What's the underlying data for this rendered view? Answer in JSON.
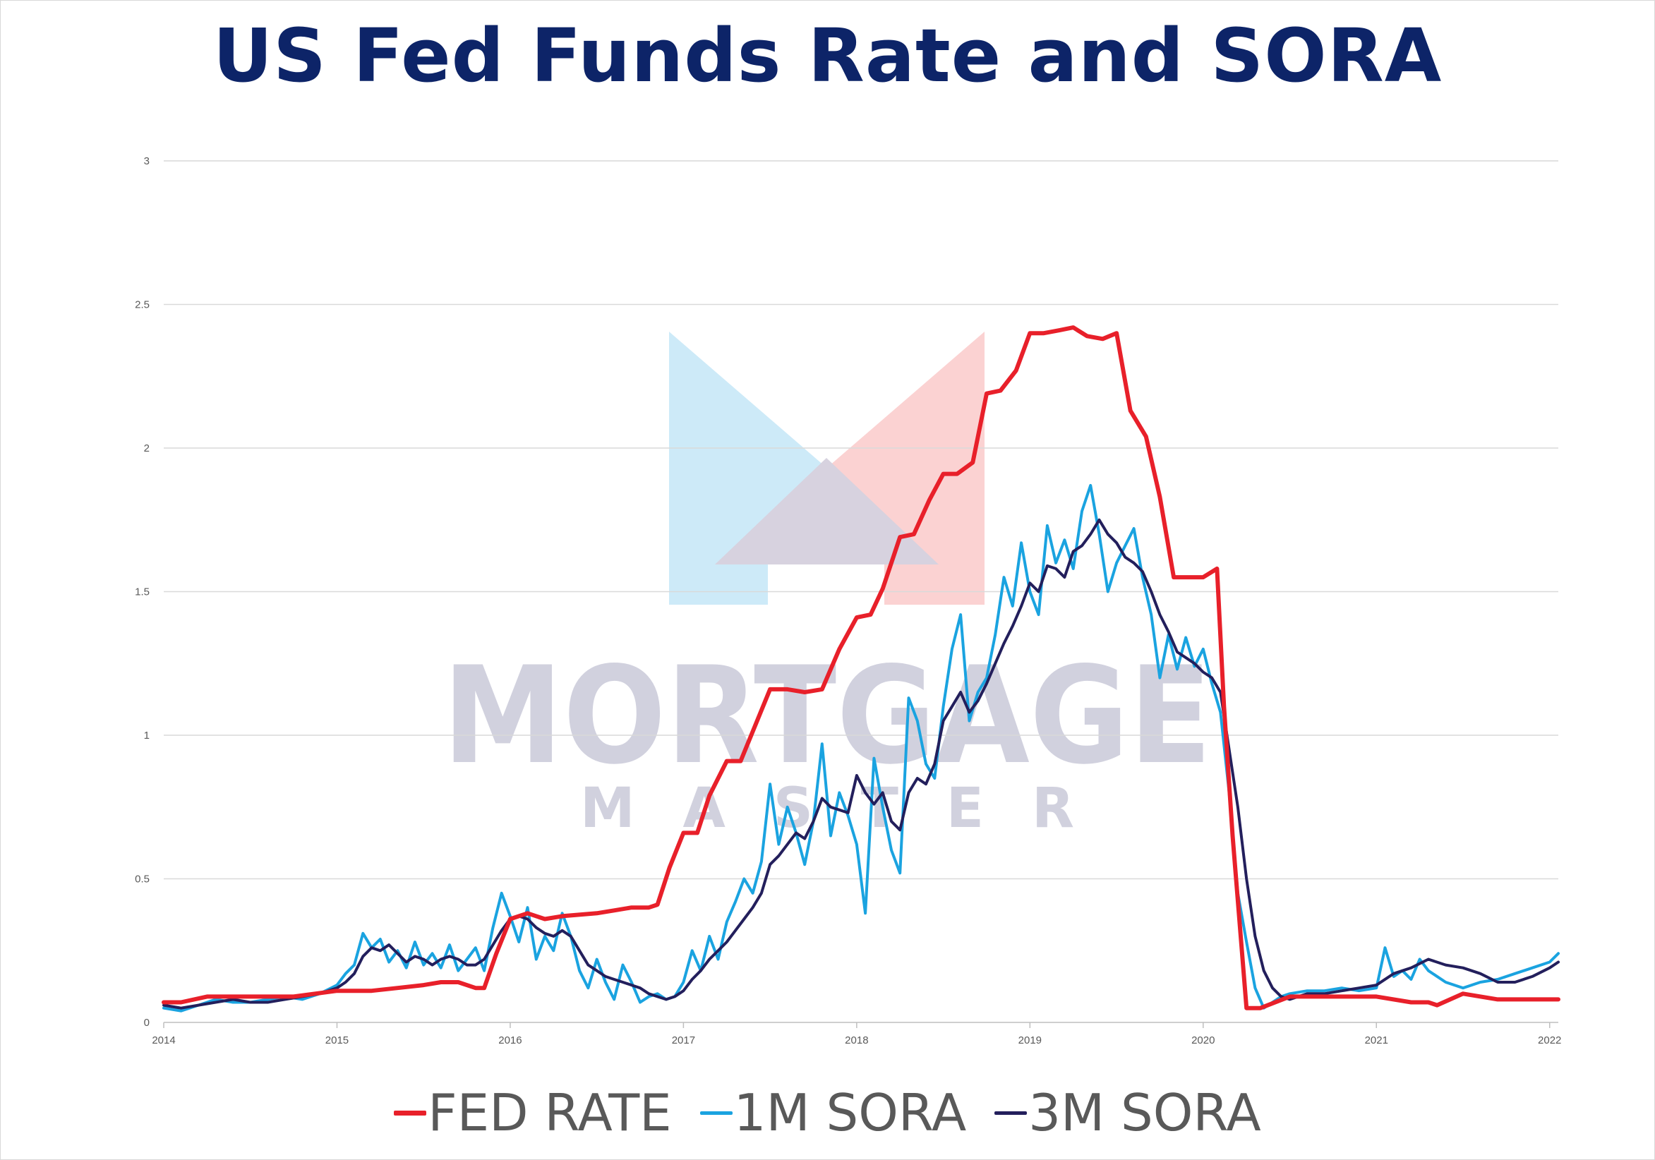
{
  "title": "US Fed Funds Rate and SORA",
  "watermark": {
    "word1": "MORTGAGE",
    "word2": "M A S T E R"
  },
  "legend": [
    {
      "name": "FED RATE",
      "color": "#e8202a"
    },
    {
      "name": "1M SORA",
      "color": "#1aa3e0"
    },
    {
      "name": "3M SORA",
      "color": "#231f5c"
    }
  ],
  "chart_data": {
    "type": "line",
    "title": "US Fed Funds Rate and SORA",
    "xlim": [
      2014.0,
      2022.05
    ],
    "ylim": [
      0,
      3
    ],
    "x_ticks": [
      "2014",
      "2015",
      "2016",
      "2017",
      "2018",
      "2019",
      "2020",
      "2021",
      "2022"
    ],
    "y_ticks": [
      "0",
      "0.5",
      "1",
      "1.5",
      "2",
      "2.5",
      "3"
    ],
    "grid": true,
    "legend_position": "bottom",
    "series": [
      {
        "name": "FED RATE",
        "color": "#e8202a",
        "x": [
          2014.0,
          2014.1,
          2014.25,
          2014.4,
          2014.5,
          2014.75,
          2015.0,
          2015.2,
          2015.35,
          2015.5,
          2015.6,
          2015.7,
          2015.8,
          2015.85,
          2015.92,
          2016.0,
          2016.1,
          2016.2,
          2016.3,
          2016.5,
          2016.6,
          2016.7,
          2016.8,
          2016.85,
          2016.92,
          2017.0,
          2017.08,
          2017.15,
          2017.25,
          2017.33,
          2017.5,
          2017.6,
          2017.7,
          2017.8,
          2017.9,
          2018.0,
          2018.08,
          2018.15,
          2018.25,
          2018.33,
          2018.42,
          2018.5,
          2018.58,
          2018.67,
          2018.75,
          2018.83,
          2018.92,
          2019.0,
          2019.08,
          2019.17,
          2019.25,
          2019.33,
          2019.42,
          2019.5,
          2019.58,
          2019.67,
          2019.75,
          2019.83,
          2019.92,
          2020.0,
          2020.08,
          2020.12,
          2020.17,
          2020.25,
          2020.33,
          2020.5,
          2021.0,
          2021.2,
          2021.3,
          2021.35,
          2021.5,
          2021.7,
          2022.05
        ],
        "y": [
          0.07,
          0.07,
          0.09,
          0.09,
          0.09,
          0.09,
          0.11,
          0.11,
          0.12,
          0.13,
          0.14,
          0.14,
          0.12,
          0.12,
          0.24,
          0.36,
          0.38,
          0.36,
          0.37,
          0.38,
          0.39,
          0.4,
          0.4,
          0.41,
          0.54,
          0.66,
          0.66,
          0.79,
          0.91,
          0.91,
          1.16,
          1.16,
          1.15,
          1.16,
          1.3,
          1.41,
          1.42,
          1.51,
          1.69,
          1.7,
          1.82,
          1.91,
          1.91,
          1.95,
          2.19,
          2.2,
          2.27,
          2.4,
          2.4,
          2.41,
          2.42,
          2.39,
          2.38,
          2.4,
          2.13,
          2.04,
          1.83,
          1.55,
          1.55,
          1.55,
          1.58,
          1.1,
          0.65,
          0.05,
          0.05,
          0.09,
          0.09,
          0.07,
          0.07,
          0.06,
          0.1,
          0.08,
          0.08
        ]
      },
      {
        "name": "1M SORA",
        "color": "#1aa3e0",
        "x": [
          2014.0,
          2014.1,
          2014.2,
          2014.3,
          2014.4,
          2014.5,
          2014.6,
          2014.7,
          2014.8,
          2014.9,
          2015.0,
          2015.05,
          2015.1,
          2015.15,
          2015.2,
          2015.25,
          2015.3,
          2015.35,
          2015.4,
          2015.45,
          2015.5,
          2015.55,
          2015.6,
          2015.65,
          2015.7,
          2015.75,
          2015.8,
          2015.85,
          2015.9,
          2015.95,
          2016.0,
          2016.05,
          2016.1,
          2016.15,
          2016.2,
          2016.25,
          2016.3,
          2016.35,
          2016.4,
          2016.45,
          2016.5,
          2016.55,
          2016.6,
          2016.65,
          2016.7,
          2016.75,
          2016.8,
          2016.85,
          2016.9,
          2016.95,
          2017.0,
          2017.05,
          2017.1,
          2017.15,
          2017.2,
          2017.25,
          2017.3,
          2017.35,
          2017.4,
          2017.45,
          2017.5,
          2017.55,
          2017.6,
          2017.65,
          2017.7,
          2017.75,
          2017.8,
          2017.85,
          2017.9,
          2017.95,
          2018.0,
          2018.05,
          2018.1,
          2018.15,
          2018.2,
          2018.25,
          2018.3,
          2018.35,
          2018.4,
          2018.45,
          2018.5,
          2018.55,
          2018.6,
          2018.65,
          2018.7,
          2018.75,
          2018.8,
          2018.85,
          2018.9,
          2018.95,
          2019.0,
          2019.05,
          2019.1,
          2019.15,
          2019.2,
          2019.25,
          2019.3,
          2019.35,
          2019.4,
          2019.45,
          2019.5,
          2019.55,
          2019.6,
          2019.65,
          2019.7,
          2019.75,
          2019.8,
          2019.85,
          2019.9,
          2019.95,
          2020.0,
          2020.05,
          2020.1,
          2020.15,
          2020.2,
          2020.25,
          2020.3,
          2020.35,
          2020.4,
          2020.45,
          2020.5,
          2020.6,
          2020.7,
          2020.8,
          2020.9,
          2021.0,
          2021.05,
          2021.1,
          2021.15,
          2021.2,
          2021.25,
          2021.3,
          2021.4,
          2021.5,
          2021.6,
          2021.7,
          2021.8,
          2021.9,
          2022.0,
          2022.05
        ],
        "y": [
          0.05,
          0.04,
          0.06,
          0.08,
          0.07,
          0.07,
          0.08,
          0.09,
          0.08,
          0.1,
          0.13,
          0.17,
          0.2,
          0.31,
          0.26,
          0.29,
          0.21,
          0.25,
          0.19,
          0.28,
          0.2,
          0.24,
          0.19,
          0.27,
          0.18,
          0.22,
          0.26,
          0.18,
          0.33,
          0.45,
          0.37,
          0.28,
          0.4,
          0.22,
          0.3,
          0.25,
          0.38,
          0.3,
          0.18,
          0.12,
          0.22,
          0.14,
          0.08,
          0.2,
          0.14,
          0.07,
          0.09,
          0.1,
          0.08,
          0.09,
          0.14,
          0.25,
          0.18,
          0.3,
          0.22,
          0.35,
          0.42,
          0.5,
          0.45,
          0.56,
          0.83,
          0.62,
          0.75,
          0.66,
          0.55,
          0.7,
          0.97,
          0.65,
          0.8,
          0.72,
          0.62,
          0.38,
          0.92,
          0.75,
          0.6,
          0.52,
          1.13,
          1.05,
          0.9,
          0.85,
          1.1,
          1.3,
          1.42,
          1.05,
          1.15,
          1.2,
          1.35,
          1.55,
          1.45,
          1.67,
          1.5,
          1.42,
          1.73,
          1.6,
          1.68,
          1.58,
          1.78,
          1.87,
          1.7,
          1.5,
          1.6,
          1.66,
          1.72,
          1.55,
          1.42,
          1.2,
          1.35,
          1.23,
          1.34,
          1.24,
          1.3,
          1.18,
          1.08,
          0.8,
          0.45,
          0.28,
          0.12,
          0.05,
          0.07,
          0.09,
          0.1,
          0.11,
          0.11,
          0.12,
          0.11,
          0.12,
          0.26,
          0.16,
          0.18,
          0.15,
          0.22,
          0.18,
          0.14,
          0.12,
          0.14,
          0.15,
          0.17,
          0.19,
          0.21,
          0.24
        ]
      },
      {
        "name": "3M SORA",
        "color": "#231f5c",
        "x": [
          2014.0,
          2014.1,
          2014.2,
          2014.3,
          2014.4,
          2014.5,
          2014.6,
          2014.7,
          2014.8,
          2014.9,
          2015.0,
          2015.05,
          2015.1,
          2015.15,
          2015.2,
          2015.25,
          2015.3,
          2015.35,
          2015.4,
          2015.45,
          2015.5,
          2015.55,
          2015.6,
          2015.65,
          2015.7,
          2015.75,
          2015.8,
          2015.85,
          2015.9,
          2015.95,
          2016.0,
          2016.05,
          2016.1,
          2016.15,
          2016.2,
          2016.25,
          2016.3,
          2016.35,
          2016.4,
          2016.45,
          2016.5,
          2016.55,
          2016.6,
          2016.65,
          2016.7,
          2016.75,
          2016.8,
          2016.85,
          2016.9,
          2016.95,
          2017.0,
          2017.05,
          2017.1,
          2017.15,
          2017.2,
          2017.25,
          2017.3,
          2017.35,
          2017.4,
          2017.45,
          2017.5,
          2017.55,
          2017.6,
          2017.65,
          2017.7,
          2017.75,
          2017.8,
          2017.85,
          2017.9,
          2017.95,
          2018.0,
          2018.05,
          2018.1,
          2018.15,
          2018.2,
          2018.25,
          2018.3,
          2018.35,
          2018.4,
          2018.45,
          2018.5,
          2018.55,
          2018.6,
          2018.65,
          2018.7,
          2018.75,
          2018.8,
          2018.85,
          2018.9,
          2018.95,
          2019.0,
          2019.05,
          2019.1,
          2019.15,
          2019.2,
          2019.25,
          2019.3,
          2019.35,
          2019.4,
          2019.45,
          2019.5,
          2019.55,
          2019.6,
          2019.65,
          2019.7,
          2019.75,
          2019.8,
          2019.85,
          2019.9,
          2019.95,
          2020.0,
          2020.05,
          2020.1,
          2020.15,
          2020.2,
          2020.25,
          2020.3,
          2020.35,
          2020.4,
          2020.45,
          2020.5,
          2020.6,
          2020.7,
          2020.8,
          2020.9,
          2021.0,
          2021.1,
          2021.2,
          2021.3,
          2021.4,
          2021.5,
          2021.6,
          2021.7,
          2021.8,
          2021.9,
          2022.0,
          2022.05
        ],
        "y": [
          0.06,
          0.05,
          0.06,
          0.07,
          0.08,
          0.07,
          0.07,
          0.08,
          0.09,
          0.1,
          0.12,
          0.14,
          0.17,
          0.23,
          0.26,
          0.25,
          0.27,
          0.24,
          0.21,
          0.23,
          0.22,
          0.2,
          0.22,
          0.23,
          0.22,
          0.2,
          0.2,
          0.22,
          0.27,
          0.32,
          0.36,
          0.37,
          0.36,
          0.33,
          0.31,
          0.3,
          0.32,
          0.3,
          0.25,
          0.2,
          0.18,
          0.16,
          0.15,
          0.14,
          0.13,
          0.12,
          0.1,
          0.09,
          0.08,
          0.09,
          0.11,
          0.15,
          0.18,
          0.22,
          0.25,
          0.28,
          0.32,
          0.36,
          0.4,
          0.45,
          0.55,
          0.58,
          0.62,
          0.66,
          0.64,
          0.7,
          0.78,
          0.75,
          0.74,
          0.73,
          0.86,
          0.8,
          0.76,
          0.8,
          0.7,
          0.67,
          0.8,
          0.85,
          0.83,
          0.9,
          1.05,
          1.1,
          1.15,
          1.08,
          1.12,
          1.18,
          1.25,
          1.32,
          1.38,
          1.45,
          1.53,
          1.5,
          1.59,
          1.58,
          1.55,
          1.64,
          1.66,
          1.7,
          1.75,
          1.7,
          1.67,
          1.62,
          1.6,
          1.57,
          1.5,
          1.42,
          1.36,
          1.29,
          1.27,
          1.25,
          1.22,
          1.2,
          1.15,
          0.95,
          0.75,
          0.5,
          0.3,
          0.18,
          0.12,
          0.09,
          0.08,
          0.1,
          0.1,
          0.11,
          0.12,
          0.13,
          0.17,
          0.19,
          0.22,
          0.2,
          0.19,
          0.17,
          0.14,
          0.14,
          0.16,
          0.19,
          0.21
        ]
      }
    ]
  }
}
